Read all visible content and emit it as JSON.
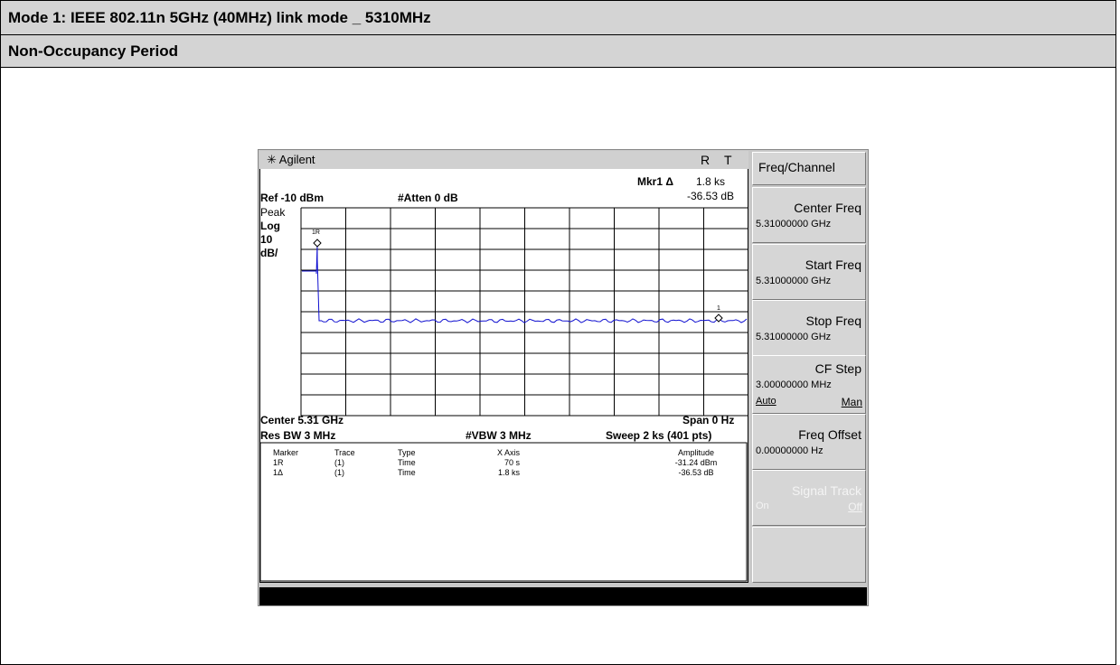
{
  "header": {
    "title": "Mode 1: IEEE 802.11n 5GHz (40MHz) link mode _ 5310MHz",
    "subtitle": "Non-Occupancy Period"
  },
  "analyzer": {
    "brand": "Agilent",
    "status": [
      "R",
      "T"
    ],
    "marker_readout": {
      "label": "Mkr1 Δ",
      "x": "1.8 ks",
      "y": "-36.53 dB"
    },
    "ref": "Ref -10 dBm",
    "atten": "#Atten 0 dB",
    "detector": "Peak",
    "scale": [
      "Log",
      "10",
      "dB/"
    ],
    "marker_tags": [
      "1R",
      "1"
    ],
    "footer": {
      "center": "Center 5.31 GHz",
      "span": "Span 0 Hz",
      "rbw": "Res BW 3 MHz",
      "vbw": "#VBW 3 MHz",
      "sweep": "Sweep 2 ks (401 pts)"
    },
    "table": {
      "header": [
        "Marker",
        "Trace",
        "Type",
        "X Axis",
        "Amplitude"
      ],
      "rows": [
        [
          "1R",
          "(1)",
          "Time",
          "70 s",
          "-31.24 dBm"
        ],
        [
          "1Δ",
          "(1)",
          "Time",
          "1.8 ks",
          "-36.53 dB"
        ]
      ]
    },
    "softkeys": {
      "menu": "Freq/Channel",
      "keys": [
        {
          "label": "Center Freq",
          "value": "5.31000000 GHz"
        },
        {
          "label": "Start Freq",
          "value": "5.31000000 GHz"
        },
        {
          "label": "Stop Freq",
          "value": "5.31000000 GHz"
        },
        {
          "label": "CF Step",
          "value": "3.00000000 MHz",
          "options": [
            "Auto",
            "Man"
          ]
        },
        {
          "label": "Freq Offset",
          "value": "0.00000000 Hz"
        },
        {
          "label": "Signal Track",
          "options": [
            "On",
            "Off"
          ]
        }
      ]
    }
  }
}
